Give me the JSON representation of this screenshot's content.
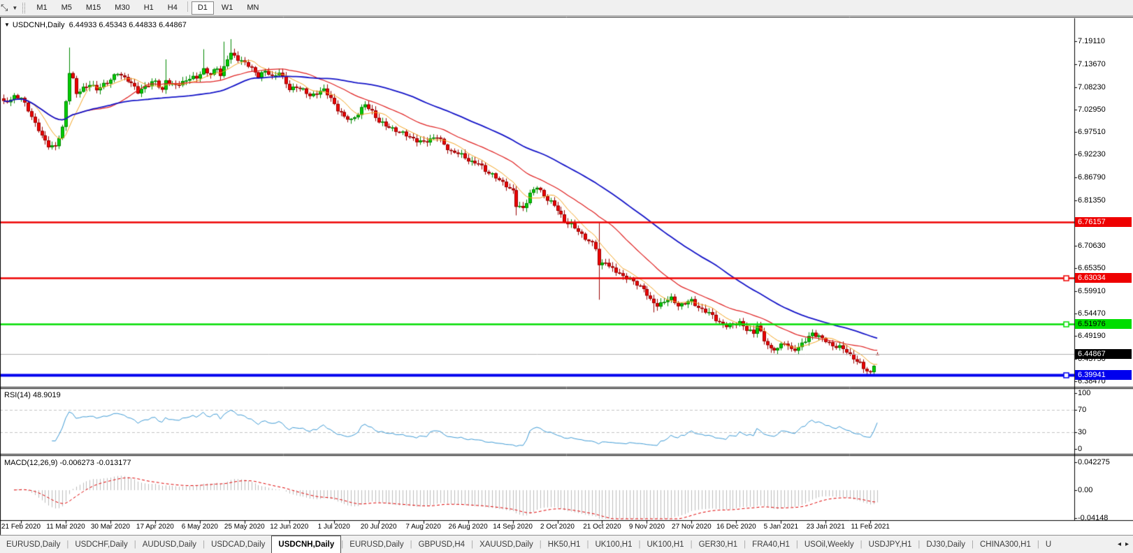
{
  "toolbar": {
    "timeframes": [
      "M1",
      "M5",
      "M15",
      "M30",
      "H1",
      "H4",
      "D1",
      "W1",
      "MN"
    ],
    "active_timeframe": "D1"
  },
  "chart_header": {
    "symbol": "USDCNH,Daily",
    "ohlc_text": "6.44933 6.45343 6.44833 6.44867"
  },
  "price_axis": {
    "ticks": [
      "7.19110",
      "7.13670",
      "7.08230",
      "7.02950",
      "6.97510",
      "6.92230",
      "6.86790",
      "6.81350",
      "6.70630",
      "6.65350",
      "6.59910",
      "6.54470",
      "6.49190",
      "6.43750",
      "6.38470"
    ],
    "badges": [
      {
        "text": "6.76157",
        "price": 6.76157,
        "bg": "#ee0000",
        "fg": "#ffffff"
      },
      {
        "text": "6.63034",
        "price": 6.63034,
        "bg": "#ee0000",
        "fg": "#ffffff"
      },
      {
        "text": "6.51976",
        "price": 6.51976,
        "bg": "#00dd00",
        "fg": "#000000"
      },
      {
        "text": "6.44867",
        "price": 6.44867,
        "bg": "#000000",
        "fg": "#ffffff"
      },
      {
        "text": "6.39941",
        "price": 6.39941,
        "bg": "#0000ee",
        "fg": "#ffffff"
      }
    ]
  },
  "indicators": {
    "rsi": {
      "label": "RSI(14) 48.9019",
      "axis": [
        "100",
        "70",
        "30",
        "0"
      ],
      "axis_values": [
        100,
        70,
        30,
        0
      ],
      "levels": [
        70,
        30
      ],
      "line_color": "#3e9bd6"
    },
    "macd": {
      "label": "MACD(12,26,9) -0.006273 -0.013177",
      "axis": [
        "0.042275",
        "0.00",
        "-0.04148"
      ],
      "axis_values": [
        0.042275,
        0,
        -0.04148
      ],
      "histogram_color": "#bdbdbd",
      "signal_color": "#e00000"
    }
  },
  "date_axis": [
    "21 Feb 2020",
    "11 Mar 2020",
    "30 Mar 2020",
    "17 Apr 2020",
    "6 May 2020",
    "25 May 2020",
    "12 Jun 2020",
    "1 Jul 2020",
    "20 Jul 2020",
    "7 Aug 2020",
    "26 Aug 2020",
    "14 Sep 2020",
    "2 Oct 2020",
    "21 Oct 2020",
    "9 Nov 2020",
    "27 Nov 2020",
    "16 Dec 2020",
    "5 Jan 2021",
    "23 Jan 2021",
    "11 Feb 2021"
  ],
  "tab_bar": {
    "tabs": [
      "EURUSD,Daily",
      "USDCHF,Daily",
      "AUDUSD,Daily",
      "USDCAD,Daily",
      "USDCNH,Daily",
      "EURUSD,Daily",
      "GBPUSD,H4",
      "XAUUSD,Daily",
      "HK50,H1",
      "UK100,H1",
      "UK100,H1",
      "GER30,H1",
      "FRA40,H1",
      "USOil,Weekly",
      "USDJPY,H1",
      "DJ30,Daily",
      "CHINA300,H1",
      "U"
    ],
    "active_index": 4,
    "scroll_left": "◂",
    "scroll_right": "▸"
  },
  "chart_data": {
    "type": "candlestick",
    "title": "USDCNH,Daily",
    "symbol": "USDCNH",
    "timeframe": "Daily",
    "current_ohlc": {
      "open": 6.44933,
      "high": 6.45343,
      "low": 6.44833,
      "close": 6.44867
    },
    "y_axis_top_tick": 7.1911,
    "y_axis_bottom_tick": 6.3847,
    "horizontal_lines": [
      {
        "price": 6.76157,
        "color": "#ee0000",
        "width": 2.5,
        "handle": false
      },
      {
        "price": 6.63034,
        "color": "#ee0000",
        "width": 2.5,
        "handle": true
      },
      {
        "price": 6.51976,
        "color": "#00dd00",
        "width": 2.5,
        "handle": true
      },
      {
        "price": 6.39941,
        "color": "#0000ee",
        "width": 4,
        "handle": true
      }
    ],
    "current_price_line": {
      "price": 6.44867,
      "color": "#b0b0b0"
    },
    "moving_averages": [
      {
        "period": 8,
        "color": "#f5a623",
        "width": 1
      },
      {
        "period": 25,
        "color": "#e02020",
        "width": 1.2
      },
      {
        "period": 55,
        "color": "#1414c8",
        "width": 1.8
      }
    ],
    "candle_colors": {
      "up": "#00cc00",
      "up_border": "#008800",
      "down": "#ee0000",
      "down_border": "#990000"
    },
    "bar_domain": [
      -5,
      249
    ],
    "tick_stride": 13,
    "noise": 0.0055,
    "price_anchors": [
      [
        -5,
        7.045
      ],
      [
        -2,
        7.06
      ],
      [
        0,
        7.055
      ],
      [
        2,
        7.03
      ],
      [
        4,
        6.995
      ],
      [
        6,
        6.965
      ],
      [
        8,
        6.945
      ],
      [
        10,
        6.94
      ],
      [
        12,
        6.985
      ],
      [
        13,
        7.05
      ],
      [
        14,
        7.12
      ],
      [
        15,
        7.1
      ],
      [
        16,
        7.065
      ],
      [
        18,
        7.08
      ],
      [
        20,
        7.09
      ],
      [
        22,
        7.075
      ],
      [
        24,
        7.09
      ],
      [
        26,
        7.1
      ],
      [
        28,
        7.115
      ],
      [
        31,
        7.1
      ],
      [
        34,
        7.07
      ],
      [
        36,
        7.085
      ],
      [
        39,
        7.095
      ],
      [
        41,
        7.075
      ],
      [
        42,
        7.1
      ],
      [
        44,
        7.085
      ],
      [
        46,
        7.09
      ],
      [
        48,
        7.1
      ],
      [
        51,
        7.105
      ],
      [
        53,
        7.125
      ],
      [
        55,
        7.11
      ],
      [
        57,
        7.13
      ],
      [
        58,
        7.11
      ],
      [
        60,
        7.15
      ],
      [
        61,
        7.16
      ],
      [
        63,
        7.15
      ],
      [
        65,
        7.14
      ],
      [
        67,
        7.125
      ],
      [
        69,
        7.11
      ],
      [
        71,
        7.12
      ],
      [
        73,
        7.105
      ],
      [
        75,
        7.12
      ],
      [
        77,
        7.09
      ],
      [
        78,
        7.075
      ],
      [
        80,
        7.085
      ],
      [
        82,
        7.075
      ],
      [
        84,
        7.06
      ],
      [
        86,
        7.07
      ],
      [
        88,
        7.075
      ],
      [
        90,
        7.055
      ],
      [
        92,
        7.03
      ],
      [
        94,
        7.01
      ],
      [
        96,
        7.005
      ],
      [
        98,
        7.02
      ],
      [
        100,
        7.04
      ],
      [
        102,
        7.025
      ],
      [
        104,
        7.0
      ],
      [
        106,
        6.99
      ],
      [
        108,
        6.985
      ],
      [
        110,
        6.975
      ],
      [
        113,
        6.965
      ],
      [
        115,
        6.955
      ],
      [
        117,
        6.95
      ],
      [
        119,
        6.96
      ],
      [
        121,
        6.965
      ],
      [
        123,
        6.945
      ],
      [
        125,
        6.93
      ],
      [
        127,
        6.925
      ],
      [
        129,
        6.915
      ],
      [
        131,
        6.905
      ],
      [
        133,
        6.9
      ],
      [
        135,
        6.885
      ],
      [
        137,
        6.875
      ],
      [
        139,
        6.86
      ],
      [
        141,
        6.85
      ],
      [
        143,
        6.835
      ],
      [
        144,
        6.8
      ],
      [
        146,
        6.795
      ],
      [
        148,
        6.83
      ],
      [
        150,
        6.845
      ],
      [
        152,
        6.825
      ],
      [
        154,
        6.81
      ],
      [
        156,
        6.79
      ],
      [
        158,
        6.765
      ],
      [
        160,
        6.755
      ],
      [
        162,
        6.74
      ],
      [
        164,
        6.725
      ],
      [
        166,
        6.71
      ],
      [
        167,
        6.7
      ],
      [
        168,
        6.66
      ],
      [
        170,
        6.67
      ],
      [
        171,
        6.655
      ],
      [
        173,
        6.645
      ],
      [
        175,
        6.635
      ],
      [
        177,
        6.625
      ],
      [
        179,
        6.615
      ],
      [
        181,
        6.605
      ],
      [
        183,
        6.575
      ],
      [
        185,
        6.565
      ],
      [
        187,
        6.575
      ],
      [
        189,
        6.58
      ],
      [
        191,
        6.565
      ],
      [
        193,
        6.57
      ],
      [
        195,
        6.575
      ],
      [
        197,
        6.56
      ],
      [
        199,
        6.55
      ],
      [
        201,
        6.54
      ],
      [
        203,
        6.525
      ],
      [
        205,
        6.515
      ],
      [
        207,
        6.52
      ],
      [
        209,
        6.525
      ],
      [
        211,
        6.505
      ],
      [
        213,
        6.5
      ],
      [
        214,
        6.52
      ],
      [
        216,
        6.48
      ],
      [
        218,
        6.46
      ],
      [
        220,
        6.465
      ],
      [
        222,
        6.475
      ],
      [
        224,
        6.46
      ],
      [
        226,
        6.465
      ],
      [
        228,
        6.48
      ],
      [
        230,
        6.5
      ],
      [
        232,
        6.49
      ],
      [
        234,
        6.48
      ],
      [
        236,
        6.47
      ],
      [
        238,
        6.465
      ],
      [
        240,
        6.455
      ],
      [
        242,
        6.44
      ],
      [
        244,
        6.425
      ],
      [
        245,
        6.415
      ],
      [
        246,
        6.41
      ],
      [
        247,
        6.405
      ],
      [
        248,
        6.425
      ],
      [
        249,
        6.44867
      ]
    ],
    "spikes": [
      {
        "d": 14,
        "high": 7.176
      },
      {
        "d": 42,
        "high": 7.148
      },
      {
        "d": 53,
        "high": 7.172
      },
      {
        "d": 59,
        "high": 7.19
      },
      {
        "d": 61,
        "high": 7.196
      },
      {
        "d": 144,
        "low": 6.778
      },
      {
        "d": 168,
        "high": 6.76,
        "low": 6.578
      },
      {
        "d": 184,
        "low": 6.548
      },
      {
        "d": 218,
        "low": 6.452
      },
      {
        "d": 246,
        "low": 6.4
      },
      {
        "d": 247,
        "low": 6.3985
      }
    ],
    "rsi_current": 48.9019,
    "macd_current": [
      -0.006273,
      -0.013177
    ]
  }
}
